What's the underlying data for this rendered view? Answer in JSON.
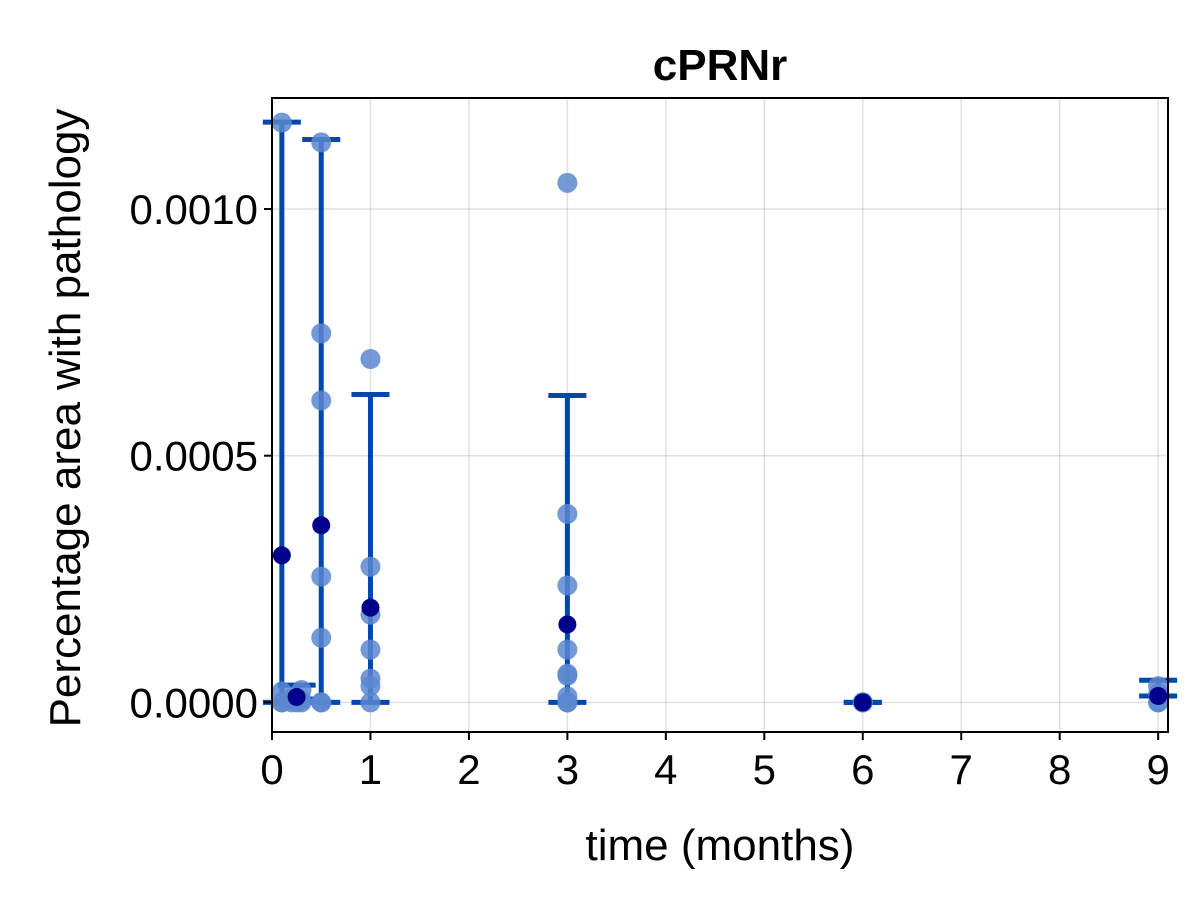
{
  "chart_data": {
    "type": "scatter",
    "title": "cPRNr",
    "xlabel": "time (months)",
    "ylabel": "Percentage area with pathology",
    "xlim": [
      0,
      9.1
    ],
    "ylim": [
      -6e-05,
      0.001225
    ],
    "xticks": [
      0,
      1,
      2,
      3,
      4,
      5,
      6,
      7,
      8,
      9
    ],
    "xtick_labels": [
      "0",
      "1",
      "2",
      "3",
      "4",
      "5",
      "6",
      "7",
      "8",
      "9"
    ],
    "yticks": [
      0.0,
      0.0005,
      0.001
    ],
    "ytick_labels": [
      "0.0000",
      "0.0005",
      "0.0010"
    ],
    "grid": true,
    "colors": {
      "points": "#5b87cf",
      "means": "#00008b",
      "error_bars": "#0047ab"
    },
    "points": [
      {
        "x": 0.1,
        "y": 0.001175
      },
      {
        "x": 0.1,
        "y": 2.2e-05
      },
      {
        "x": 0.1,
        "y": 0.0
      },
      {
        "x": 0.1,
        "y": 0.0
      },
      {
        "x": 0.2,
        "y": 8e-06
      },
      {
        "x": 0.2,
        "y": 0.0
      },
      {
        "x": 0.25,
        "y": 0.0
      },
      {
        "x": 0.3,
        "y": 2.5e-05
      },
      {
        "x": 0.3,
        "y": 5e-06
      },
      {
        "x": 0.3,
        "y": 0.0
      },
      {
        "x": 0.5,
        "y": 0.001135
      },
      {
        "x": 0.5,
        "y": 0.000748
      },
      {
        "x": 0.5,
        "y": 0.000612
      },
      {
        "x": 0.5,
        "y": 0.000255
      },
      {
        "x": 0.5,
        "y": 0.000131
      },
      {
        "x": 0.5,
        "y": 0.0
      },
      {
        "x": 0.5,
        "y": 0.0
      },
      {
        "x": 1,
        "y": 0.000696
      },
      {
        "x": 1,
        "y": 0.000275
      },
      {
        "x": 1,
        "y": 0.000178
      },
      {
        "x": 1,
        "y": 0.000107
      },
      {
        "x": 1,
        "y": 4.8e-05
      },
      {
        "x": 1,
        "y": 3.3e-05
      },
      {
        "x": 1,
        "y": 0.0
      },
      {
        "x": 3,
        "y": 0.001053
      },
      {
        "x": 3,
        "y": 0.000382
      },
      {
        "x": 3,
        "y": 0.000237
      },
      {
        "x": 3,
        "y": 0.000107
      },
      {
        "x": 3,
        "y": 5.8e-05
      },
      {
        "x": 3,
        "y": 5.4e-05
      },
      {
        "x": 3,
        "y": 1.2e-05
      },
      {
        "x": 3,
        "y": 0.0
      },
      {
        "x": 3,
        "y": 0.0
      },
      {
        "x": 6,
        "y": 0.0
      },
      {
        "x": 6,
        "y": 0.0
      },
      {
        "x": 6,
        "y": 0.0
      },
      {
        "x": 9,
        "y": 3.3e-05
      },
      {
        "x": 9,
        "y": 1.8e-05
      },
      {
        "x": 9,
        "y": 0.0
      },
      {
        "x": 9,
        "y": 0.0
      }
    ],
    "means": [
      {
        "x": 0.1,
        "y": 0.000298,
        "err_low": 0.000298,
        "err_high": 0.000878
      },
      {
        "x": 0.25,
        "y": 1.1e-05,
        "err_low": 4e-06,
        "err_high": 2.4e-05
      },
      {
        "x": 0.5,
        "y": 0.000359,
        "err_low": 0.000359,
        "err_high": 0.000782
      },
      {
        "x": 1,
        "y": 0.000192,
        "err_low": 0.000192,
        "err_high": 0.000432
      },
      {
        "x": 3,
        "y": 0.000158,
        "err_low": 0.000158,
        "err_high": 0.000464
      },
      {
        "x": 6,
        "y": 0.0,
        "err_low": 0.0,
        "err_high": 0.0
      },
      {
        "x": 9,
        "y": 1.3e-05,
        "err_low": 0.0,
        "err_high": 3.2e-05
      }
    ]
  }
}
